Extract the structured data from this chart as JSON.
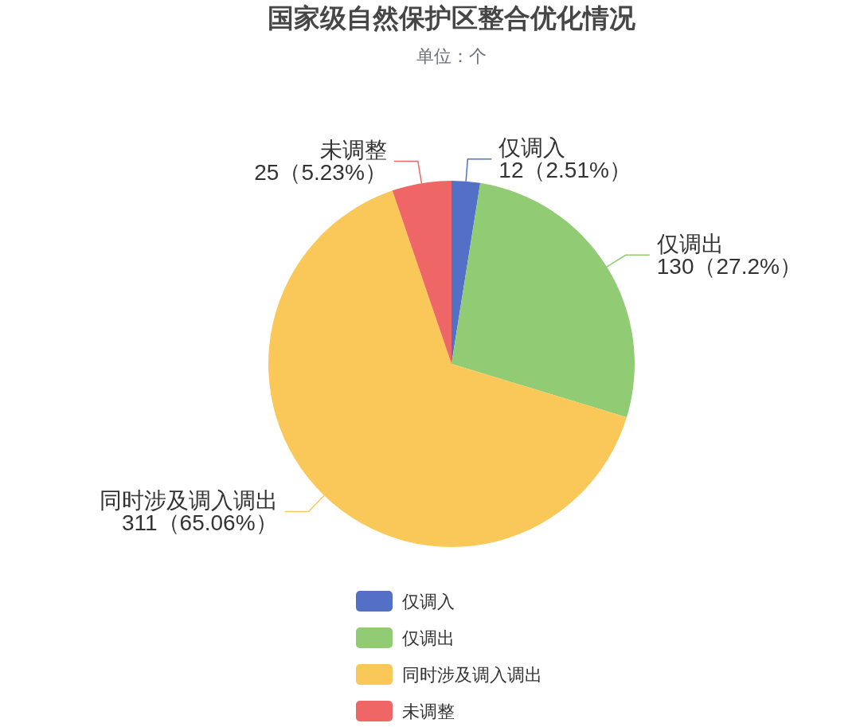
{
  "chart_data": {
    "type": "pie",
    "title": "国家级自然保护区整合优化情况",
    "subtitle": "单位：个",
    "categories": [
      "仅调入",
      "仅调出",
      "同时涉及调入调出",
      "未调整"
    ],
    "values": [
      12,
      130,
      311,
      25
    ],
    "colors": [
      "#5470c6",
      "#91cc75",
      "#fac858",
      "#ee6666"
    ],
    "value_labels": [
      "12（2.51%）",
      "130（27.2%）",
      "311（65.06%）",
      "25（5.23%）"
    ],
    "legend": "bottom"
  }
}
